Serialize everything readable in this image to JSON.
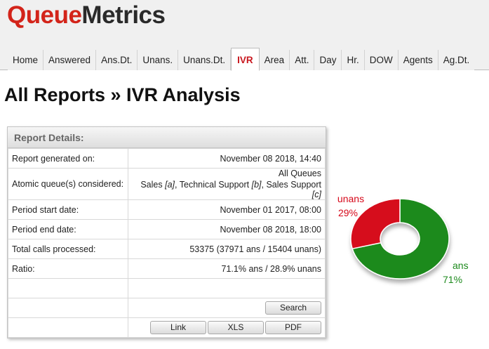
{
  "app": {
    "logo_part1": "Queue",
    "logo_part2": "Metrics"
  },
  "tabs": [
    "Home",
    "Answered",
    "Ans.Dt.",
    "Unans.",
    "Unans.Dt.",
    "IVR",
    "Area",
    "Att.",
    "Day",
    "Hr.",
    "DOW",
    "Agents",
    "Ag.Dt."
  ],
  "active_tab": "IVR",
  "page_title": "All Reports » IVR Analysis",
  "report": {
    "header": "Report Details:",
    "generated_label": "Report generated on:",
    "generated_value": "November 08 2018, 14:40",
    "queues_label": "Atomic queue(s) considered:",
    "queues_line1": "All Queues",
    "queues": [
      {
        "name": "Sales",
        "code": "[a]"
      },
      {
        "name": "Technical Support",
        "code": "[b]"
      },
      {
        "name": "Sales Support",
        "code": "[c]"
      }
    ],
    "start_label": "Period start date:",
    "start_value": "November 01 2017, 08:00",
    "end_label": "Period end date:",
    "end_value": "November 08 2018, 18:00",
    "calls_label": "Total calls processed:",
    "calls_value": "53375 (37971 ans / 15404 unans)",
    "ratio_label": "Ratio:",
    "ratio_value": "71.1% ans / 28.9% unans"
  },
  "buttons": {
    "search": "Search",
    "link": "Link",
    "xls": "XLS",
    "pdf": "PDF"
  },
  "chart_data": {
    "type": "pie",
    "labels": [
      "ans",
      "unans"
    ],
    "values": [
      71,
      29
    ],
    "value_labels": [
      "71%",
      "29%"
    ],
    "colors": [
      "#1d8a1d",
      "#d6081a"
    ],
    "donut": true
  }
}
